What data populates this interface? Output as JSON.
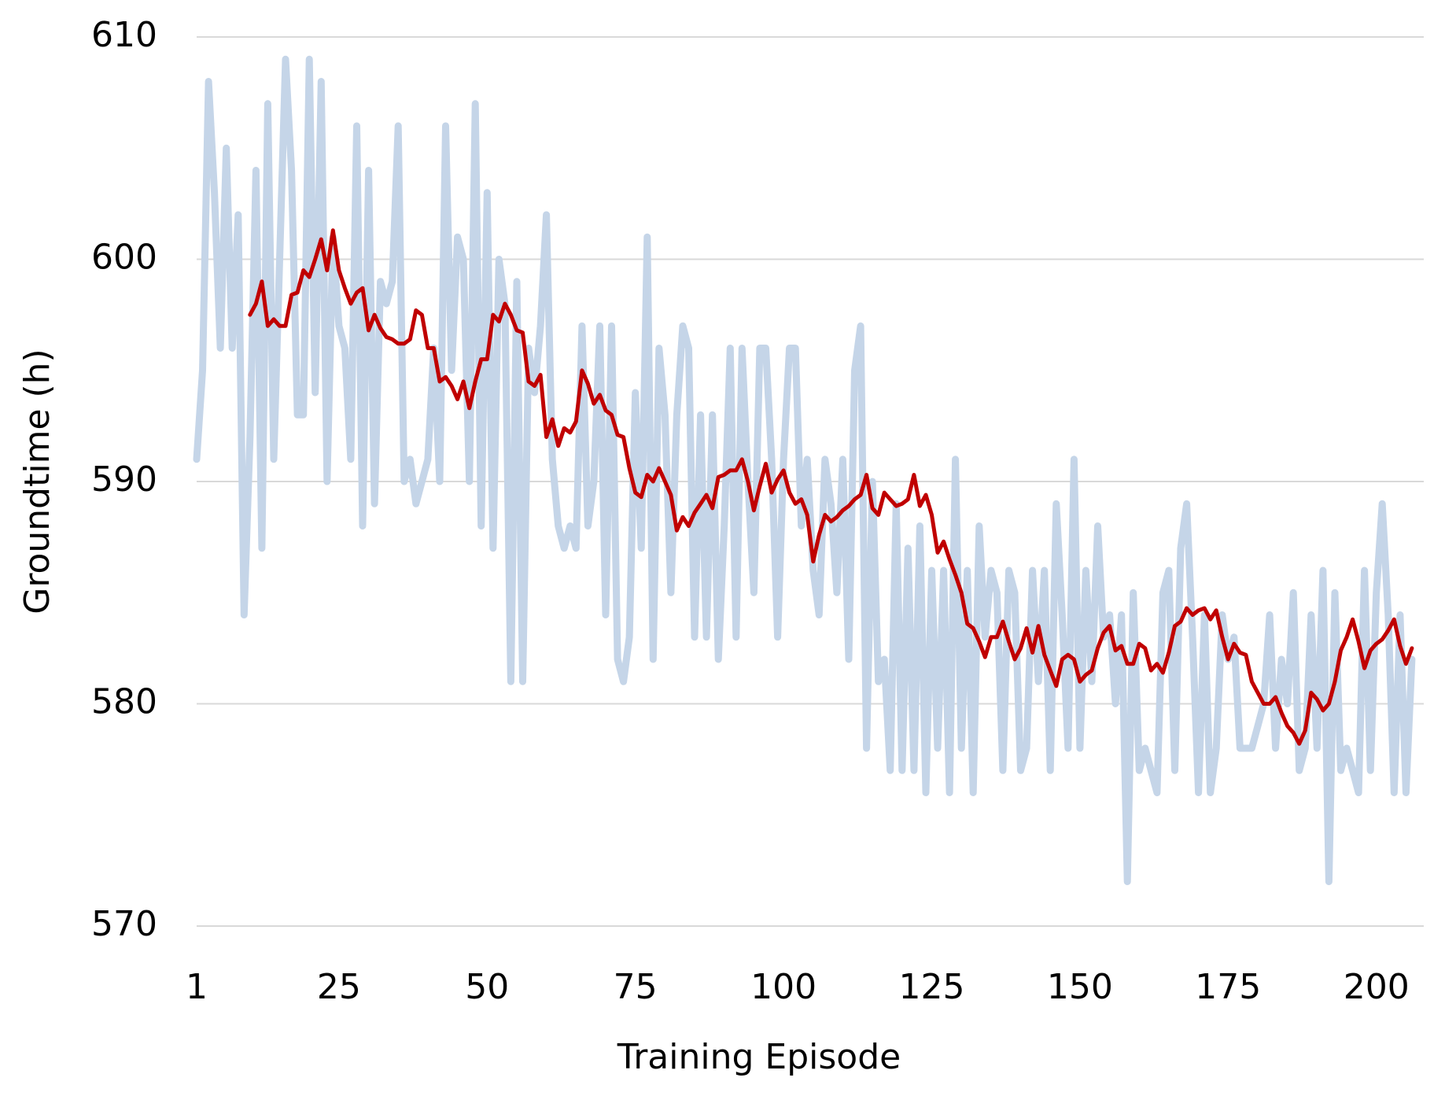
{
  "chart_data": {
    "type": "line",
    "xlabel": "Training Episode",
    "ylabel": "Groundtime (h)",
    "xlim": [
      1,
      208
    ],
    "ylim": [
      570,
      610
    ],
    "xticks": [
      1,
      25,
      50,
      75,
      100,
      125,
      150,
      175,
      200
    ],
    "yticks": [
      570,
      580,
      590,
      600,
      610
    ],
    "grid": true,
    "x": [
      1,
      2,
      3,
      4,
      5,
      6,
      7,
      8,
      9,
      10,
      11,
      12,
      13,
      14,
      15,
      16,
      17,
      18,
      19,
      20,
      21,
      22,
      23,
      24,
      25,
      26,
      27,
      28,
      29,
      30,
      31,
      32,
      33,
      34,
      35,
      36,
      37,
      38,
      39,
      40,
      41,
      42,
      43,
      44,
      45,
      46,
      47,
      48,
      49,
      50,
      51,
      52,
      53,
      54,
      55,
      56,
      57,
      58,
      59,
      60,
      61,
      62,
      63,
      64,
      65,
      66,
      67,
      68,
      69,
      70,
      71,
      72,
      73,
      74,
      75,
      76,
      77,
      78,
      79,
      80,
      81,
      82,
      83,
      84,
      85,
      86,
      87,
      88,
      89,
      90,
      91,
      92,
      93,
      94,
      95,
      96,
      97,
      98,
      99,
      100,
      101,
      102,
      103,
      104,
      105,
      106,
      107,
      108,
      109,
      110,
      111,
      112,
      113,
      114,
      115,
      116,
      117,
      118,
      119,
      120,
      121,
      122,
      123,
      124,
      125,
      126,
      127,
      128,
      129,
      130,
      131,
      132,
      133,
      134,
      135,
      136,
      137,
      138,
      139,
      140,
      141,
      142,
      143,
      144,
      145,
      146,
      147,
      148,
      149,
      150,
      151,
      152,
      153,
      154,
      155,
      156,
      157,
      158,
      159,
      160,
      161,
      162,
      163,
      164,
      165,
      166,
      167,
      168,
      169,
      170,
      171,
      172,
      173,
      174,
      175,
      176,
      177,
      178,
      179,
      180,
      181,
      182,
      183,
      184,
      185,
      186,
      187,
      188,
      189,
      190,
      191,
      192,
      193,
      194,
      195,
      196,
      197,
      198,
      199,
      200,
      201,
      202,
      203,
      204,
      205,
      206
    ],
    "series": [
      {
        "color": "#c5d5e8",
        "width": 9,
        "values": [
          591,
          595,
          608,
          603,
          596,
          605,
          596,
          602,
          584,
          592,
          604,
          587,
          607,
          591,
          600,
          609,
          604,
          593,
          593,
          609,
          594,
          608,
          590,
          601,
          597,
          596,
          591,
          606,
          588,
          604,
          589,
          599,
          598,
          599,
          606,
          590,
          591,
          589,
          590,
          591,
          596,
          590,
          606,
          595,
          601,
          600,
          590,
          607,
          588,
          603,
          587,
          600,
          598,
          581,
          599,
          581,
          596,
          594,
          597,
          602,
          591,
          588,
          587,
          588,
          587,
          597,
          588,
          590,
          597,
          584,
          597,
          582,
          581,
          583,
          594,
          587,
          601,
          582,
          596,
          593,
          585,
          593,
          597,
          596,
          583,
          593,
          583,
          593,
          582,
          588,
          596,
          583,
          596,
          590,
          585,
          596,
          596,
          591,
          583,
          591,
          596,
          596,
          588,
          591,
          586,
          584,
          591,
          589,
          585,
          591,
          582,
          595,
          597,
          578,
          590,
          581,
          582,
          577,
          589,
          577,
          587,
          577,
          588,
          576,
          586,
          578,
          586,
          576,
          591,
          578,
          586,
          576,
          588,
          583,
          586,
          585,
          577,
          586,
          585,
          577,
          578,
          586,
          581,
          586,
          577,
          589,
          584,
          578,
          591,
          578,
          586,
          581,
          588,
          583,
          584,
          580,
          584,
          572,
          585,
          577,
          578,
          577,
          576,
          585,
          586,
          577,
          587,
          589,
          583,
          576,
          584,
          576,
          578,
          584,
          582,
          583,
          578,
          578,
          578,
          579,
          580,
          584,
          578,
          582,
          580,
          585,
          577,
          578,
          584,
          578,
          586,
          572,
          585,
          577,
          578,
          577,
          576,
          586,
          577,
          585,
          589,
          584,
          576,
          584,
          576,
          582
        ]
      },
      {
        "color": "#c00000",
        "width": 5,
        "values": [
          null,
          null,
          null,
          null,
          null,
          null,
          null,
          null,
          null,
          597.5,
          598,
          599,
          597,
          597.3,
          597,
          597,
          598.4,
          598.5,
          599.5,
          599.2,
          600,
          600.9,
          599.5,
          601.3,
          599.5,
          598.7,
          598,
          598.5,
          598.7,
          596.8,
          597.5,
          596.9,
          596.5,
          596.4,
          596.2,
          596.2,
          596.4,
          597.7,
          597.5,
          596,
          596,
          594.5,
          594.7,
          594.3,
          593.7,
          594.5,
          593.3,
          594.5,
          595.5,
          595.5,
          597.5,
          597.2,
          598,
          597.5,
          596.8,
          596.7,
          594.5,
          594.3,
          594.8,
          592,
          592.8,
          591.6,
          592.4,
          592.2,
          592.7,
          595,
          594.4,
          593.5,
          593.9,
          593.2,
          593,
          592.1,
          592,
          590.6,
          589.5,
          589.3,
          590.3,
          590,
          590.6,
          590,
          589.4,
          587.8,
          588.4,
          588,
          588.6,
          589,
          589.4,
          588.8,
          590.2,
          590.3,
          590.5,
          590.5,
          591,
          590,
          588.7,
          589.8,
          590.8,
          589.5,
          590.1,
          590.5,
          589.5,
          589,
          589.2,
          588.5,
          586.4,
          587.6,
          588.5,
          588.2,
          588.4,
          588.7,
          588.9,
          589.2,
          589.4,
          590.3,
          588.8,
          588.5,
          589.5,
          589.2,
          588.9,
          589,
          589.2,
          590.3,
          588.9,
          589.4,
          588.5,
          586.8,
          587.3,
          586.5,
          585.8,
          585,
          583.6,
          583.4,
          582.8,
          582.1,
          583,
          583,
          583.7,
          582.8,
          582,
          582.5,
          583.4,
          582.3,
          583.5,
          582.2,
          581.5,
          580.8,
          582,
          582.2,
          582,
          581,
          581.3,
          581.5,
          582.5,
          583.2,
          583.5,
          582.4,
          582.6,
          581.8,
          581.8,
          582.7,
          582.5,
          581.5,
          581.8,
          581.4,
          582.3,
          583.5,
          583.7,
          584.3,
          584,
          584.2,
          584.3,
          583.8,
          584.2,
          583,
          582,
          582.7,
          582.3,
          582.2,
          581,
          580.5,
          580,
          580,
          580.3,
          579.6,
          579,
          578.7,
          578.2,
          578.8,
          580.5,
          580.2,
          579.7,
          580,
          581,
          582.4,
          583,
          583.8,
          582.8,
          581.6,
          582.4,
          582.7,
          582.9,
          583.3,
          583.8,
          582.6,
          581.8,
          582.5
        ]
      }
    ]
  }
}
